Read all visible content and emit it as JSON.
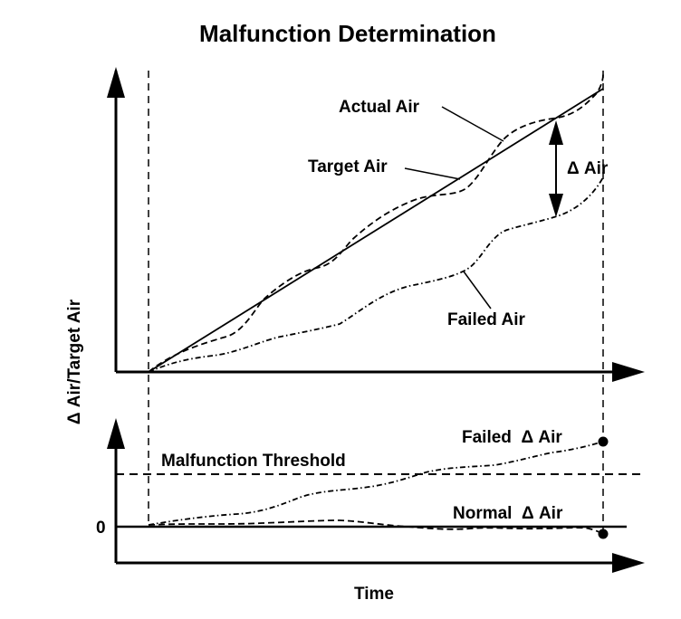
{
  "title": "Malfunction Determination",
  "y_axis_label": "Δ Air/Target Air",
  "x_axis_label": "Time",
  "top_panel": {
    "actual_air_label": "Actual Air",
    "target_air_label": "Target Air",
    "delta_air_label": "Δ Air",
    "failed_air_label": "Failed Air"
  },
  "bottom_panel": {
    "threshold_label": "Malfunction Threshold",
    "failed_delta_label": "Failed  Δ Air",
    "normal_delta_label": "Normal  Δ Air",
    "zero_label": "0"
  }
}
